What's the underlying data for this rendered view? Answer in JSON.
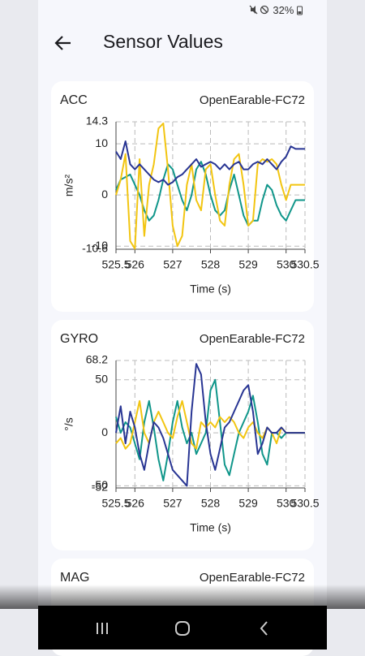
{
  "status": {
    "battery": "32%"
  },
  "header": {
    "title": "Sensor Values"
  },
  "chart_data": [
    {
      "type": "line",
      "title": "ACC",
      "device": "OpenEarable-FC72",
      "ylabel": "m/s²",
      "xlabel": "Time (s)",
      "xlim": [
        525.5,
        530.5
      ],
      "xticks": [
        525.5,
        526,
        527,
        528,
        529,
        530,
        530.5
      ],
      "ylim": [
        -10.6,
        14.3
      ],
      "yticks": [
        14.3,
        10,
        0,
        -10,
        -10.6
      ],
      "grid": true,
      "x": [
        525.5,
        525.625,
        525.75,
        525.875,
        526,
        526.125,
        526.25,
        526.375,
        526.5,
        526.625,
        526.75,
        526.875,
        527,
        527.125,
        527.25,
        527.375,
        527.5,
        527.625,
        527.75,
        527.875,
        528,
        528.125,
        528.25,
        528.375,
        528.5,
        528.625,
        528.75,
        528.875,
        529,
        529.125,
        529.25,
        529.375,
        529.5,
        529.625,
        529.75,
        529.875,
        530,
        530.125,
        530.25,
        530.375,
        530.5
      ],
      "series": [
        {
          "color": "#10968a",
          "values": [
            1,
            3,
            3.5,
            4,
            2,
            0,
            -3,
            -5,
            -4,
            -1,
            3,
            6,
            5,
            2,
            -1,
            -3,
            0,
            5,
            6.5,
            4,
            0,
            -3,
            -4,
            -3,
            1,
            4,
            0,
            -4,
            -6,
            -5,
            -5,
            -1,
            2,
            1,
            -2,
            -4,
            -5,
            -3,
            -1,
            -1,
            -1
          ]
        },
        {
          "color": "#f2c511",
          "values": [
            0,
            3,
            8,
            -9,
            -10.5,
            7,
            -8,
            2,
            6,
            13,
            14,
            5,
            -6,
            -10,
            -8,
            2,
            6,
            -1,
            -3,
            5,
            6,
            0,
            -5,
            -6,
            2,
            7,
            8,
            2,
            -6,
            -5,
            6,
            7,
            6.5,
            7,
            6,
            2,
            -1,
            2,
            2,
            2,
            2
          ]
        },
        {
          "color": "#283593",
          "values": [
            8.5,
            7,
            10.5,
            6,
            5,
            6,
            5,
            4,
            3,
            2.5,
            3,
            2,
            2.5,
            3.5,
            4,
            5,
            6,
            7,
            5.5,
            6,
            6.5,
            6,
            5,
            6,
            5,
            6,
            6.5,
            5,
            5,
            6,
            6.5,
            6,
            7,
            6,
            5,
            6.5,
            7.5,
            9.5,
            9,
            9,
            9
          ]
        }
      ]
    },
    {
      "type": "line",
      "title": "GYRO",
      "device": "OpenEarable-FC72",
      "ylabel": "°/s",
      "xlabel": "Time (s)",
      "xlim": [
        525.5,
        530.5
      ],
      "xticks": [
        525.5,
        526,
        527,
        528,
        529,
        530,
        530.5
      ],
      "ylim": [
        -52,
        68.2
      ],
      "yticks": [
        68.2,
        50,
        0,
        -50,
        -52
      ],
      "grid": true,
      "x": [
        525.5,
        525.625,
        525.75,
        525.875,
        526,
        526.125,
        526.25,
        526.375,
        526.5,
        526.625,
        526.75,
        526.875,
        527,
        527.125,
        527.25,
        527.375,
        527.5,
        527.625,
        527.75,
        527.875,
        528,
        528.125,
        528.25,
        528.375,
        528.5,
        528.625,
        528.75,
        528.875,
        529,
        529.125,
        529.25,
        529.375,
        529.5,
        529.625,
        529.75,
        529.875,
        530,
        530.125,
        530.25,
        530.375,
        530.5
      ],
      "series": [
        {
          "color": "#10968a",
          "values": [
            15,
            0,
            10,
            5,
            -10,
            -25,
            10,
            30,
            5,
            -25,
            -45,
            -20,
            10,
            30,
            5,
            -10,
            0,
            -20,
            -10,
            0,
            40,
            50,
            10,
            -30,
            -40,
            -20,
            0,
            10,
            20,
            35,
            10,
            -20,
            -30,
            0,
            0,
            -5,
            0,
            0,
            0,
            0,
            0
          ]
        },
        {
          "color": "#f2c511",
          "values": [
            -10,
            -5,
            -15,
            -10,
            10,
            30,
            0,
            -10,
            10,
            20,
            10,
            0,
            -5,
            15,
            30,
            10,
            -10,
            -15,
            10,
            5,
            10,
            5,
            15,
            10,
            15,
            10,
            0,
            -5,
            5,
            10,
            0,
            -5,
            5,
            0,
            -10,
            5,
            0,
            0,
            0,
            0,
            0
          ]
        },
        {
          "color": "#283593",
          "values": [
            0,
            25,
            -10,
            20,
            5,
            -20,
            -35,
            -10,
            10,
            5,
            -5,
            -20,
            -35,
            -40,
            -45,
            -50,
            20,
            65,
            55,
            10,
            -20,
            -35,
            -15,
            5,
            10,
            20,
            30,
            40,
            45,
            20,
            -20,
            -10,
            5,
            0,
            0,
            5,
            0,
            0,
            0,
            0,
            0
          ]
        }
      ]
    },
    {
      "type": "line",
      "title": "MAG",
      "device": "OpenEarable-FC72"
    }
  ]
}
